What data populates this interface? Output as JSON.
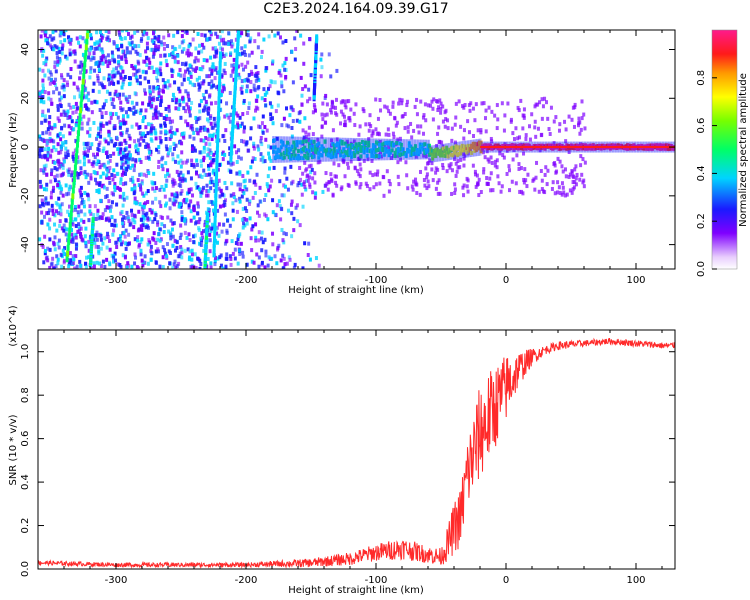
{
  "title": "C2E3.2024.164.09.39.G17",
  "chart_data": [
    {
      "type": "heatmap",
      "xlabel": "Height of straight line (km)",
      "ylabel": "Frequency (Hz)",
      "xlim": [
        -360,
        130
      ],
      "ylim": [
        -50,
        48
      ],
      "xticks": [
        -300,
        -200,
        -100,
        0,
        100
      ],
      "yticks": [
        -40,
        -20,
        0,
        20,
        40
      ],
      "colorbar": {
        "label": "Normalized spectral amplitude",
        "range": [
          0,
          1
        ],
        "ticks": [
          0.0,
          0.2,
          0.4,
          0.6,
          0.8
        ]
      },
      "grid": false
    },
    {
      "type": "line",
      "xlabel": "Height of straight line (km)",
      "ylabel": "SNR (10 * v/v)",
      "ylabel_scale": "(x10^4)",
      "xlim": [
        -360,
        130
      ],
      "ylim": [
        0,
        1.1
      ],
      "xticks": [
        -300,
        -200,
        -100,
        0,
        100
      ],
      "yticks": [
        0.0,
        0.2,
        0.4,
        0.6,
        0.8,
        1.0
      ],
      "color": "#ff2a2a",
      "series_envelope": {
        "x": [
          -360,
          -300,
          -200,
          -150,
          -120,
          -100,
          -80,
          -60,
          -50,
          -45,
          -40,
          -35,
          -30,
          -25,
          -20,
          -15,
          -10,
          -5,
          0,
          10,
          20,
          30,
          40,
          60,
          80,
          100,
          120,
          130
        ],
        "y": [
          0.03,
          0.02,
          0.02,
          0.03,
          0.05,
          0.08,
          0.1,
          0.07,
          0.06,
          0.12,
          0.2,
          0.25,
          0.45,
          0.55,
          0.65,
          0.7,
          0.75,
          0.8,
          0.85,
          0.93,
          0.98,
          1.01,
          1.03,
          1.04,
          1.05,
          1.04,
          1.03,
          1.03
        ],
        "spread": [
          0.01,
          0.01,
          0.01,
          0.02,
          0.03,
          0.04,
          0.05,
          0.04,
          0.04,
          0.08,
          0.12,
          0.14,
          0.18,
          0.2,
          0.22,
          0.22,
          0.2,
          0.18,
          0.16,
          0.08,
          0.04,
          0.02,
          0.02,
          0.015,
          0.015,
          0.015,
          0.015,
          0.015
        ]
      }
    }
  ]
}
